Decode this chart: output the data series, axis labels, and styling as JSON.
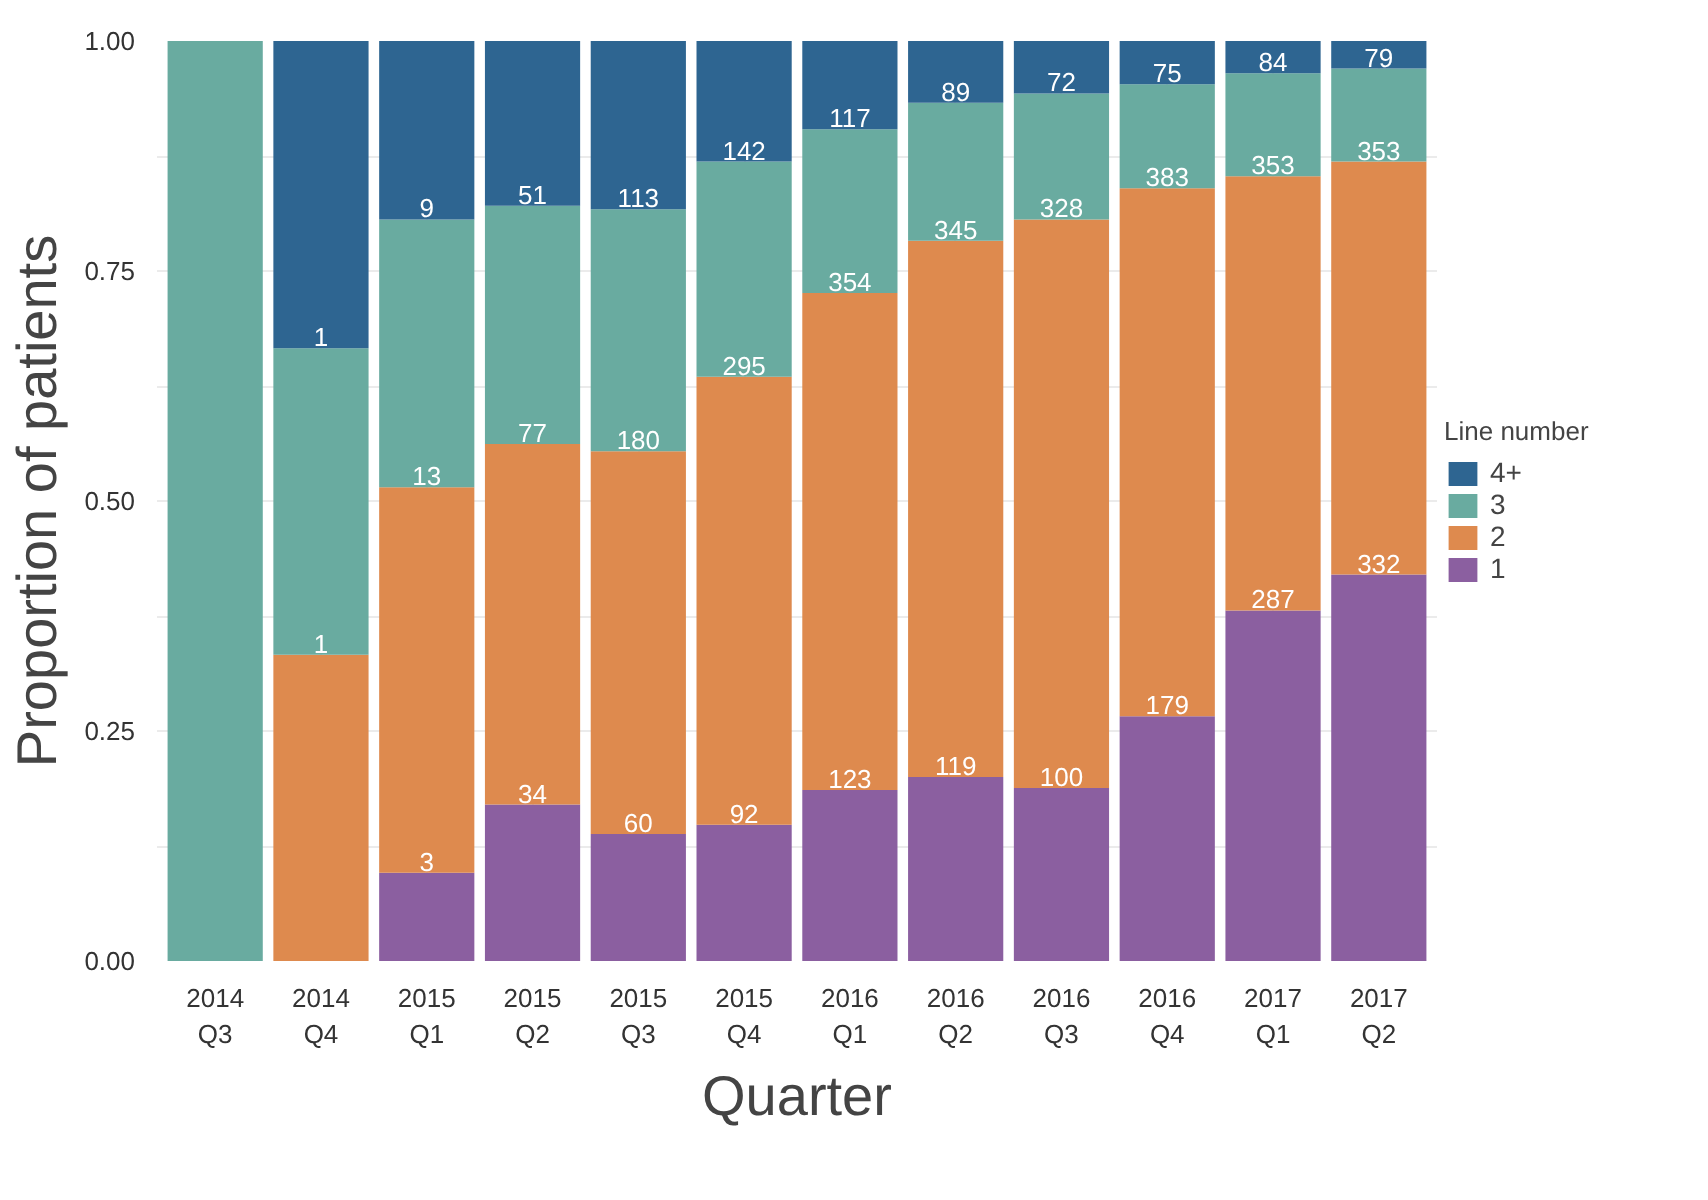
{
  "chart_data": {
    "type": "bar",
    "stacked": true,
    "xlabel": "Quarter",
    "ylabel": "Proportion of patients",
    "legend_title": "Line number",
    "legend": "right",
    "categories": [
      "2014\nQ3",
      "2014\nQ4",
      "2015\nQ1",
      "2015\nQ2",
      "2015\nQ3",
      "2015\nQ4",
      "2016\nQ1",
      "2016\nQ2",
      "2016\nQ3",
      "2016\nQ4",
      "2017\nQ1",
      "2017\nQ2"
    ],
    "ylim": [
      0,
      1
    ],
    "yticks": [
      {
        "value": 0,
        "label": "0.00"
      },
      {
        "value": 0.125,
        "label": null
      },
      {
        "value": 0.25,
        "label": "0.25"
      },
      {
        "value": 0.375,
        "label": null
      },
      {
        "value": 0.5,
        "label": "0.50"
      },
      {
        "value": 0.625,
        "label": null
      },
      {
        "value": 0.75,
        "label": "0.75"
      },
      {
        "value": 0.875,
        "label": null
      },
      {
        "value": 1,
        "label": "1.00"
      }
    ],
    "grid": true,
    "series": [
      {
        "name": "1",
        "color": "#8b5fa0",
        "values": [
          0,
          0,
          0.096,
          0.17,
          0.138,
          0.148,
          0.186,
          0.2,
          0.188,
          0.266,
          0.381,
          0.42
        ]
      },
      {
        "name": "2",
        "color": "#de8a4e",
        "values": [
          0,
          0.333,
          0.419,
          0.392,
          0.416,
          0.487,
          0.54,
          0.583,
          0.618,
          0.574,
          0.472,
          0.449
        ]
      },
      {
        "name": "3",
        "color": "#69aba0",
        "values": [
          1,
          0.333,
          0.291,
          0.259,
          0.263,
          0.234,
          0.178,
          0.15,
          0.137,
          0.113,
          0.112,
          0.101
        ]
      },
      {
        "name": "4+",
        "color": "#2e6591",
        "values": [
          0,
          0.334,
          0.194,
          0.179,
          0.183,
          0.131,
          0.096,
          0.067,
          0.057,
          0.047,
          0.035,
          0.03
        ]
      }
    ],
    "annotations": [
      {
        "text": "1",
        "x": "2014\nQ4",
        "y": 0.333
      },
      {
        "text": "1",
        "x": "2014\nQ4",
        "y": 0.666
      },
      {
        "text": "3",
        "x": "2015\nQ1",
        "y": 0.096
      },
      {
        "text": "13",
        "x": "2015\nQ1",
        "y": 0.515
      },
      {
        "text": "9",
        "x": "2015\nQ1",
        "y": 0.806
      },
      {
        "text": "34",
        "x": "2015\nQ2",
        "y": 0.17
      },
      {
        "text": "77",
        "x": "2015\nQ2",
        "y": 0.562
      },
      {
        "text": "51",
        "x": "2015\nQ2",
        "y": 0.821
      },
      {
        "text": "60",
        "x": "2015\nQ3",
        "y": 0.138
      },
      {
        "text": "180",
        "x": "2015\nQ3",
        "y": 0.554
      },
      {
        "text": "113",
        "x": "2015\nQ3",
        "y": 0.817
      },
      {
        "text": "92",
        "x": "2015\nQ4",
        "y": 0.148
      },
      {
        "text": "295",
        "x": "2015\nQ4",
        "y": 0.635
      },
      {
        "text": "142",
        "x": "2015\nQ4",
        "y": 0.869
      },
      {
        "text": "123",
        "x": "2016\nQ1",
        "y": 0.186
      },
      {
        "text": "354",
        "x": "2016\nQ1",
        "y": 0.726
      },
      {
        "text": "117",
        "x": "2016\nQ1",
        "y": 0.904
      },
      {
        "text": "119",
        "x": "2016\nQ2",
        "y": 0.2
      },
      {
        "text": "345",
        "x": "2016\nQ2",
        "y": 0.783
      },
      {
        "text": "89",
        "x": "2016\nQ2",
        "y": 0.933
      },
      {
        "text": "100",
        "x": "2016\nQ3",
        "y": 0.188
      },
      {
        "text": "328",
        "x": "2016\nQ3",
        "y": 0.806
      },
      {
        "text": "72",
        "x": "2016\nQ3",
        "y": 0.943
      },
      {
        "text": "179",
        "x": "2016\nQ4",
        "y": 0.266
      },
      {
        "text": "383",
        "x": "2016\nQ4",
        "y": 0.84
      },
      {
        "text": "75",
        "x": "2016\nQ4",
        "y": 0.953
      },
      {
        "text": "287",
        "x": "2017\nQ1",
        "y": 0.381
      },
      {
        "text": "353",
        "x": "2017\nQ1",
        "y": 0.853
      },
      {
        "text": "84",
        "x": "2017\nQ1",
        "y": 0.965
      },
      {
        "text": "332",
        "x": "2017\nQ2",
        "y": 0.42
      },
      {
        "text": "353",
        "x": "2017\nQ2",
        "y": 0.869
      },
      {
        "text": "79",
        "x": "2017\nQ2",
        "y": 0.97
      }
    ]
  }
}
